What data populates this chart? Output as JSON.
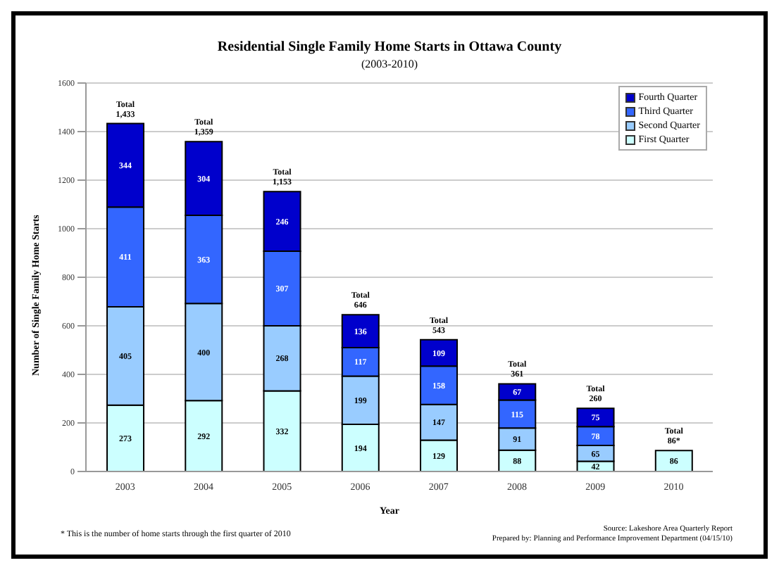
{
  "chart_data": {
    "type": "bar",
    "title": "Residential Single Family Home Starts in Ottawa County",
    "subtitle": "(2003-2010)",
    "xlabel": "Year",
    "ylabel": "Number of Single Family Home Starts",
    "categories": [
      "2003",
      "2004",
      "2005",
      "2006",
      "2007",
      "2008",
      "2009",
      "2010"
    ],
    "series": [
      {
        "name": "First Quarter",
        "color": "#ccffff",
        "values": [
          273,
          292,
          332,
          194,
          129,
          88,
          42,
          86
        ]
      },
      {
        "name": "Second Quarter",
        "color": "#99ccff",
        "values": [
          405,
          400,
          268,
          199,
          147,
          91,
          65,
          null
        ]
      },
      {
        "name": "Third Quarter",
        "color": "#3366ff",
        "values": [
          411,
          363,
          307,
          117,
          158,
          115,
          78,
          null
        ]
      },
      {
        "name": "Fourth Quarter",
        "color": "#0000cc",
        "values": [
          344,
          304,
          246,
          136,
          109,
          67,
          75,
          null
        ]
      }
    ],
    "stacked": true,
    "data_labels": true,
    "totals": [
      "Total 1,433",
      "Total 1,359",
      "Total 1,153",
      "Total 646",
      "Total 543",
      "Total 361",
      "Total 260",
      "Total 86*"
    ],
    "ylim": [
      0,
      1600
    ],
    "yticks": [
      0,
      200,
      400,
      600,
      800,
      1000,
      1200,
      1400,
      1600
    ],
    "grid": "y",
    "legend": "top right",
    "annotations": [
      "* This is the number of home starts through the first quarter of 2010",
      "Source: Lakeshore Area Quarterly Report",
      "Prepared by: Planning and Performance Improvement Department (04/15/10)"
    ]
  }
}
